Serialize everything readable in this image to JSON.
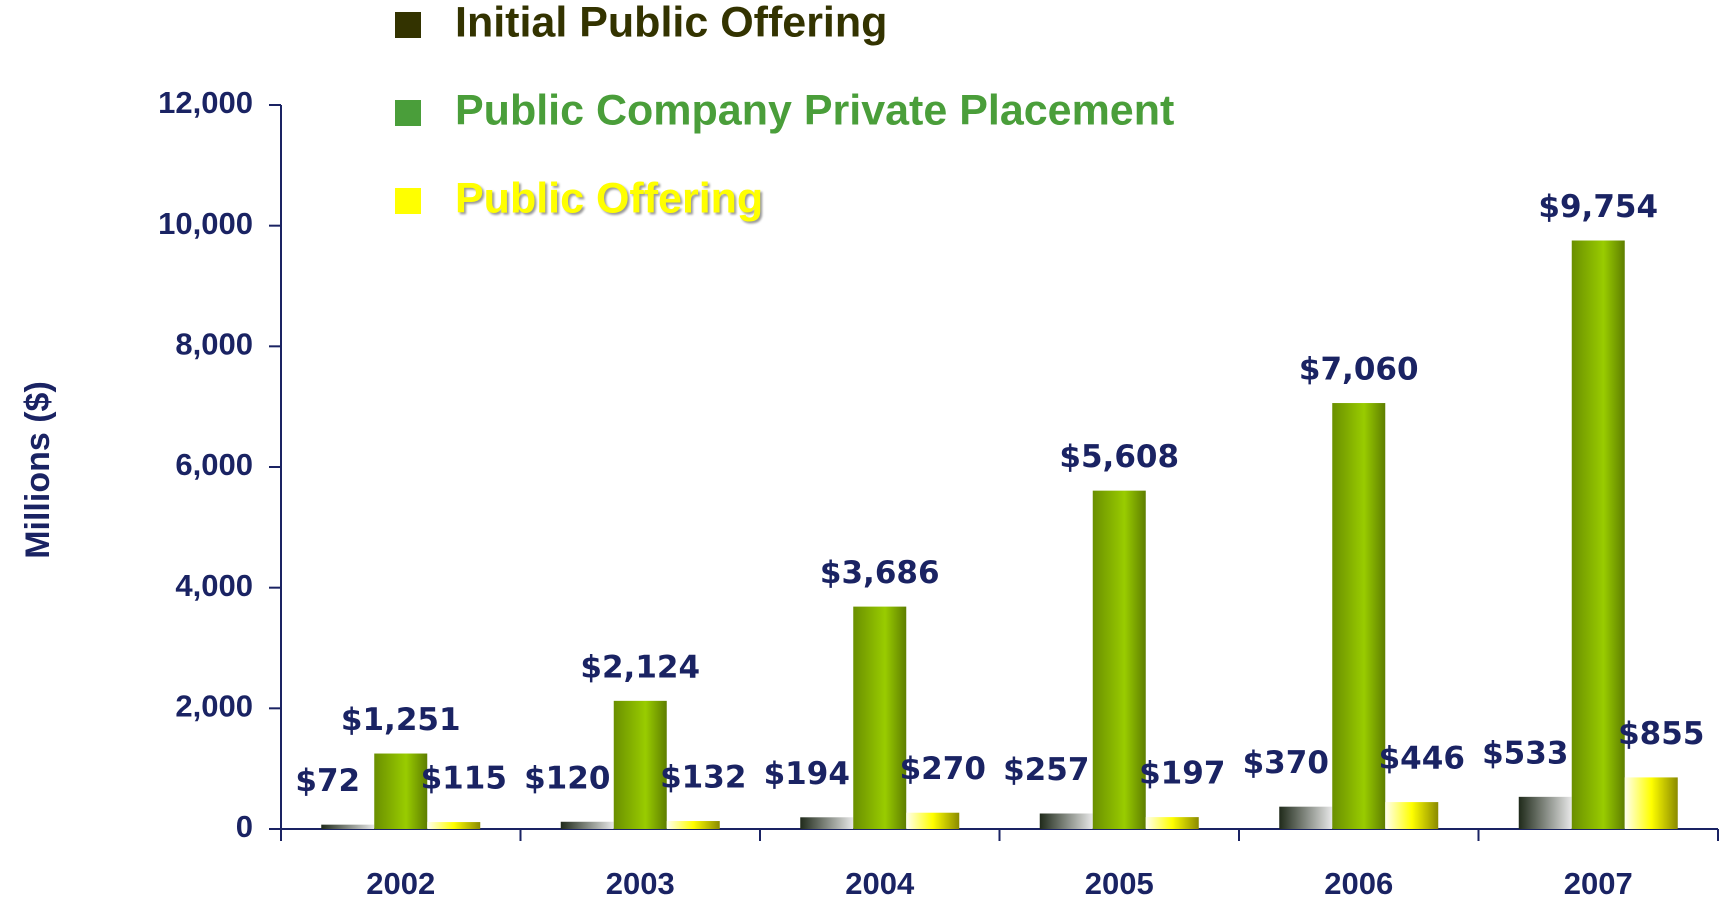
{
  "chart_data": {
    "type": "bar",
    "y_label": "Millions ($)",
    "categories": [
      "2002",
      "2003",
      "2004",
      "2005",
      "2006",
      "2007"
    ],
    "series": [
      {
        "name": "Initial Public Offering",
        "color": "#333300",
        "values": [
          72,
          120,
          194,
          257,
          370,
          533
        ],
        "value_labels": [
          "$72",
          "$120",
          "$194",
          "$257",
          "$370",
          "$533"
        ]
      },
      {
        "name": "Public Company Private Placement",
        "color": "#4a9e3a",
        "values": [
          1251,
          2124,
          3686,
          5608,
          7060,
          9754
        ],
        "value_labels": [
          "$1,251",
          "$2,124",
          "$3,686",
          "$5,608",
          "$7,060",
          "$9,754"
        ]
      },
      {
        "name": "Public Offering",
        "color": "#ffff00",
        "values": [
          115,
          132,
          270,
          197,
          446,
          855
        ],
        "value_labels": [
          "$115",
          "$132",
          "$270",
          "$197",
          "$446",
          "$855"
        ]
      }
    ],
    "ylim": [
      0,
      12000
    ],
    "yticks": [
      0,
      {
        "value": 2000,
        "label": "2,000"
      },
      {
        "value": 4000,
        "label": "4,000"
      },
      {
        "value": 6000,
        "label": "6,000"
      },
      {
        "value": 8000,
        "label": "8,000"
      },
      {
        "value": 10000,
        "label": "10,000"
      },
      {
        "value": 12000,
        "label": "12,000"
      }
    ]
  }
}
